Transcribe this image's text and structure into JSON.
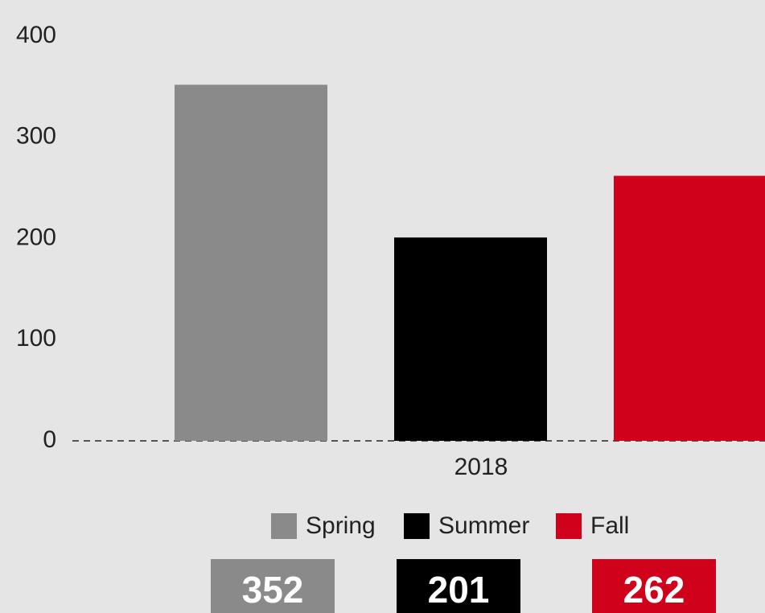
{
  "chart_data": {
    "type": "bar",
    "categories": [
      "2018"
    ],
    "series": [
      {
        "name": "Spring",
        "color": "#8a8a8a",
        "values": [
          352
        ]
      },
      {
        "name": "Summer",
        "color": "#000000",
        "values": [
          201
        ]
      },
      {
        "name": "Fall",
        "color": "#d0021b",
        "values": [
          262
        ]
      }
    ],
    "ylim": [
      0,
      400
    ],
    "yticks": [
      0,
      100,
      200,
      300,
      400
    ],
    "grid": false,
    "legend": "bottom"
  }
}
